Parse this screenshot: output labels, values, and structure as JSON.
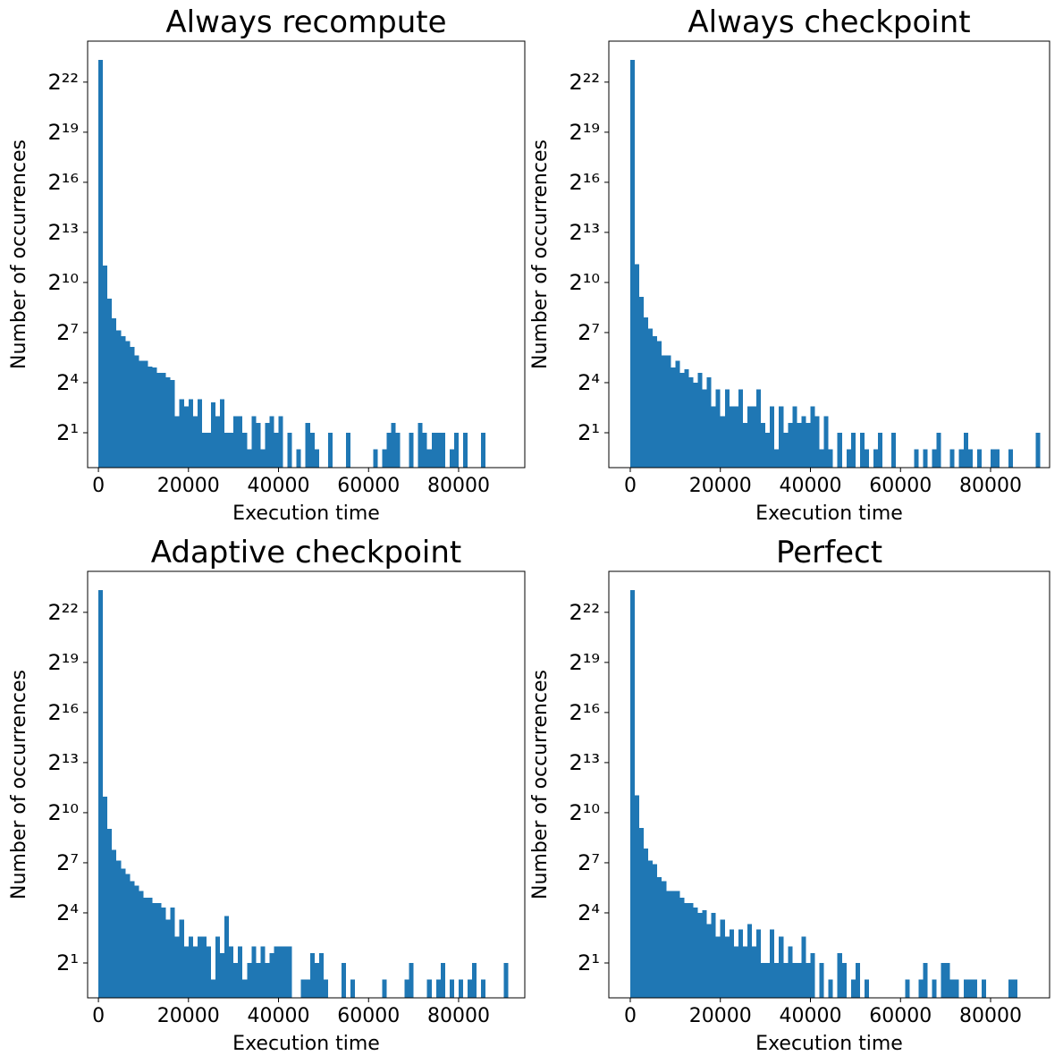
{
  "chart_data": [
    {
      "type": "histogram",
      "title": "Always recompute",
      "xlabel": "Execution time",
      "ylabel": "Number of occurrences",
      "color": "#1f77b4",
      "yscale": "log2",
      "xlim": [
        -2400,
        94700
      ],
      "ylim": [
        0.47,
        23000000
      ],
      "xticks": [
        0,
        20000,
        40000,
        60000,
        80000
      ],
      "yticks": [
        {
          "value": 2,
          "label": "2¹"
        },
        {
          "value": 16,
          "label": "2⁴"
        },
        {
          "value": 128,
          "label": "2⁷"
        },
        {
          "value": 1024,
          "label": "2¹⁰"
        },
        {
          "value": 8192,
          "label": "2¹³"
        },
        {
          "value": 65536,
          "label": "2¹⁶"
        },
        {
          "value": 524288,
          "label": "2¹⁹"
        },
        {
          "value": 4194304,
          "label": "2²²"
        }
      ],
      "bins": [
        0,
        1000,
        2000,
        3000,
        4000,
        5000,
        6000,
        7000,
        8000,
        9000,
        10000,
        11000,
        12000,
        13000,
        14000,
        15000,
        16000,
        17000,
        18000,
        19000,
        20000,
        21000,
        22000,
        23000,
        24000,
        25000,
        26000,
        27000,
        28000,
        29000,
        30000,
        31000,
        32000,
        33000,
        34000,
        35000,
        36000,
        37000,
        38000,
        39000,
        40000,
        41000,
        42000,
        43000,
        44000,
        45000,
        46000,
        47000,
        48000,
        49000,
        50000,
        51000,
        52000,
        53000,
        54000,
        55000,
        56000,
        57000,
        58000,
        59000,
        60000,
        61000,
        62000,
        63000,
        64000,
        65000,
        66000,
        67000,
        68000,
        69000,
        70000,
        71000,
        72000,
        73000,
        74000,
        75000,
        76000,
        77000,
        78000,
        79000,
        80000,
        81000,
        82000,
        83000,
        84000,
        85000,
        86000,
        87000,
        88000,
        89000,
        90000,
        91000
      ],
      "values": [
        10600000,
        2080,
        520,
        230,
        140,
        110,
        90,
        70,
        50,
        40,
        40,
        31,
        30,
        24,
        24,
        20,
        18,
        4,
        8,
        6,
        8,
        4,
        8,
        2,
        2,
        7,
        4,
        8,
        2,
        2,
        4,
        4,
        2,
        1,
        4,
        3,
        1,
        3,
        4,
        2,
        4,
        0,
        2,
        0,
        1,
        0,
        3,
        2,
        1,
        0,
        0,
        2,
        0,
        0,
        0,
        2,
        0,
        0,
        0,
        0,
        0,
        1,
        0,
        1,
        2,
        3,
        2,
        0,
        0,
        2,
        0,
        3,
        2,
        1,
        2,
        2,
        2,
        0,
        1,
        2,
        0,
        2,
        0,
        0,
        0,
        2,
        0,
        0,
        0,
        0,
        0
      ]
    },
    {
      "type": "histogram",
      "title": "Always checkpoint",
      "xlabel": "Execution time",
      "ylabel": "Number of occurrences",
      "color": "#1f77b4",
      "yscale": "log2",
      "xlim": [
        -4760,
        93100
      ],
      "ylim": [
        0.47,
        23000000
      ],
      "xticks": [
        0,
        20000,
        40000,
        60000,
        80000
      ],
      "yticks": [
        {
          "value": 2,
          "label": "2¹"
        },
        {
          "value": 16,
          "label": "2⁴"
        },
        {
          "value": 128,
          "label": "2⁷"
        },
        {
          "value": 1024,
          "label": "2¹⁰"
        },
        {
          "value": 8192,
          "label": "2¹³"
        },
        {
          "value": 65536,
          "label": "2¹⁶"
        },
        {
          "value": 524288,
          "label": "2¹⁹"
        },
        {
          "value": 4194304,
          "label": "2²²"
        }
      ],
      "bins": [
        0,
        1000,
        2000,
        3000,
        4000,
        5000,
        6000,
        7000,
        8000,
        9000,
        10000,
        11000,
        12000,
        13000,
        14000,
        15000,
        16000,
        17000,
        18000,
        19000,
        20000,
        21000,
        22000,
        23000,
        24000,
        25000,
        26000,
        27000,
        28000,
        29000,
        30000,
        31000,
        32000,
        33000,
        34000,
        35000,
        36000,
        37000,
        38000,
        39000,
        40000,
        41000,
        42000,
        43000,
        44000,
        45000,
        46000,
        47000,
        48000,
        49000,
        50000,
        51000,
        52000,
        53000,
        54000,
        55000,
        56000,
        57000,
        58000,
        59000,
        60000,
        61000,
        62000,
        63000,
        64000,
        65000,
        66000,
        67000,
        68000,
        69000,
        70000,
        71000,
        72000,
        73000,
        74000,
        75000,
        76000,
        77000,
        78000,
        79000,
        80000,
        81000,
        82000,
        83000,
        84000,
        85000,
        86000,
        87000,
        88000,
        89000,
        90000,
        91000
      ],
      "values": [
        10600000,
        2200,
        560,
        240,
        150,
        110,
        90,
        50,
        50,
        30,
        40,
        24,
        28,
        20,
        16,
        24,
        12,
        20,
        6,
        12,
        4,
        12,
        6,
        6,
        12,
        3,
        6,
        6,
        12,
        3,
        2,
        6,
        1,
        6,
        2,
        3,
        6,
        3,
        4,
        3,
        6,
        4,
        1,
        4,
        1,
        0,
        2,
        0,
        1,
        2,
        0,
        2,
        1,
        0,
        1,
        2,
        0,
        0,
        2,
        0,
        0,
        0,
        0,
        1,
        0,
        1,
        0,
        1,
        2,
        0,
        0,
        1,
        0,
        1,
        2,
        1,
        0,
        1,
        0,
        0,
        1,
        1,
        0,
        0,
        1,
        0,
        0,
        0,
        0,
        0,
        2
      ]
    },
    {
      "type": "histogram",
      "title": "Adaptive checkpoint",
      "xlabel": "Execution time",
      "ylabel": "Number of occurrences",
      "color": "#1f77b4",
      "yscale": "log2",
      "xlim": [
        -2400,
        94700
      ],
      "ylim": [
        0.47,
        23000000
      ],
      "xticks": [
        0,
        20000,
        40000,
        60000,
        80000
      ],
      "yticks": [
        {
          "value": 2,
          "label": "2¹"
        },
        {
          "value": 16,
          "label": "2⁴"
        },
        {
          "value": 128,
          "label": "2⁷"
        },
        {
          "value": 1024,
          "label": "2¹⁰"
        },
        {
          "value": 8192,
          "label": "2¹³"
        },
        {
          "value": 65536,
          "label": "2¹⁶"
        },
        {
          "value": 524288,
          "label": "2¹⁹"
        },
        {
          "value": 4194304,
          "label": "2²²"
        }
      ],
      "bins": [
        0,
        1000,
        2000,
        3000,
        4000,
        5000,
        6000,
        7000,
        8000,
        9000,
        10000,
        11000,
        12000,
        13000,
        14000,
        15000,
        16000,
        17000,
        18000,
        19000,
        20000,
        21000,
        22000,
        23000,
        24000,
        25000,
        26000,
        27000,
        28000,
        29000,
        30000,
        31000,
        32000,
        33000,
        34000,
        35000,
        36000,
        37000,
        38000,
        39000,
        40000,
        41000,
        42000,
        43000,
        44000,
        45000,
        46000,
        47000,
        48000,
        49000,
        50000,
        51000,
        52000,
        53000,
        54000,
        55000,
        56000,
        57000,
        58000,
        59000,
        60000,
        61000,
        62000,
        63000,
        64000,
        65000,
        66000,
        67000,
        68000,
        69000,
        70000,
        71000,
        72000,
        73000,
        74000,
        75000,
        76000,
        77000,
        78000,
        79000,
        80000,
        81000,
        82000,
        83000,
        84000,
        85000,
        86000,
        87000,
        88000,
        89000,
        90000,
        91000
      ],
      "values": [
        10600000,
        2000,
        520,
        220,
        140,
        100,
        80,
        60,
        50,
        40,
        30,
        30,
        24,
        24,
        20,
        12,
        20,
        6,
        12,
        4,
        6,
        4,
        6,
        6,
        4,
        1,
        6,
        3,
        14,
        4,
        2,
        4,
        1,
        2,
        4,
        2,
        4,
        2,
        3,
        4,
        4,
        4,
        4,
        0,
        0,
        1,
        1,
        3,
        2,
        3,
        1,
        0,
        0,
        0,
        2,
        0,
        1,
        0,
        0,
        0,
        0,
        0,
        0,
        1,
        0,
        0,
        0,
        0,
        1,
        2,
        0,
        0,
        0,
        1,
        0,
        1,
        2,
        0,
        1,
        0,
        1,
        0,
        1,
        2,
        0,
        1,
        0,
        0,
        0,
        0,
        2
      ]
    },
    {
      "type": "histogram",
      "title": "Perfect",
      "xlabel": "Execution time",
      "ylabel": "Number of occurrences",
      "color": "#1f77b4",
      "yscale": "log2",
      "xlim": [
        -4760,
        93100
      ],
      "ylim": [
        0.47,
        23000000
      ],
      "xticks": [
        0,
        20000,
        40000,
        60000,
        80000
      ],
      "yticks": [
        {
          "value": 2,
          "label": "2¹"
        },
        {
          "value": 16,
          "label": "2⁴"
        },
        {
          "value": 128,
          "label": "2⁷"
        },
        {
          "value": 1024,
          "label": "2¹⁰"
        },
        {
          "value": 8192,
          "label": "2¹³"
        },
        {
          "value": 65536,
          "label": "2¹⁶"
        },
        {
          "value": 524288,
          "label": "2¹⁹"
        },
        {
          "value": 4194304,
          "label": "2²²"
        }
      ],
      "bins": [
        0,
        1000,
        2000,
        3000,
        4000,
        5000,
        6000,
        7000,
        8000,
        9000,
        10000,
        11000,
        12000,
        13000,
        14000,
        15000,
        16000,
        17000,
        18000,
        19000,
        20000,
        21000,
        22000,
        23000,
        24000,
        25000,
        26000,
        27000,
        28000,
        29000,
        30000,
        31000,
        32000,
        33000,
        34000,
        35000,
        36000,
        37000,
        38000,
        39000,
        40000,
        41000,
        42000,
        43000,
        44000,
        45000,
        46000,
        47000,
        48000,
        49000,
        50000,
        51000,
        52000,
        53000,
        54000,
        55000,
        56000,
        57000,
        58000,
        59000,
        60000,
        61000,
        62000,
        63000,
        64000,
        65000,
        66000,
        67000,
        68000,
        69000,
        70000,
        71000,
        72000,
        73000,
        74000,
        75000,
        76000,
        77000,
        78000,
        79000,
        80000,
        81000,
        82000,
        83000,
        84000,
        85000,
        86000,
        87000,
        88000,
        89000,
        90000,
        91000
      ],
      "values": [
        10600000,
        2100,
        540,
        230,
        140,
        120,
        70,
        60,
        40,
        40,
        40,
        30,
        24,
        24,
        20,
        16,
        18,
        10,
        16,
        6,
        12,
        6,
        8,
        4,
        8,
        4,
        10,
        4,
        8,
        2,
        2,
        8,
        2,
        6,
        2,
        4,
        2,
        2,
        6,
        2,
        3,
        0,
        2,
        0,
        1,
        0,
        3,
        2,
        0,
        1,
        2,
        0,
        1,
        0,
        0,
        0,
        0,
        0,
        0,
        0,
        0,
        1,
        0,
        0,
        1,
        2,
        0,
        1,
        0,
        2,
        2,
        1,
        1,
        0,
        1,
        1,
        1,
        0,
        1,
        0,
        0,
        0,
        0,
        0,
        1,
        1,
        0,
        0,
        0,
        0,
        0
      ]
    }
  ]
}
